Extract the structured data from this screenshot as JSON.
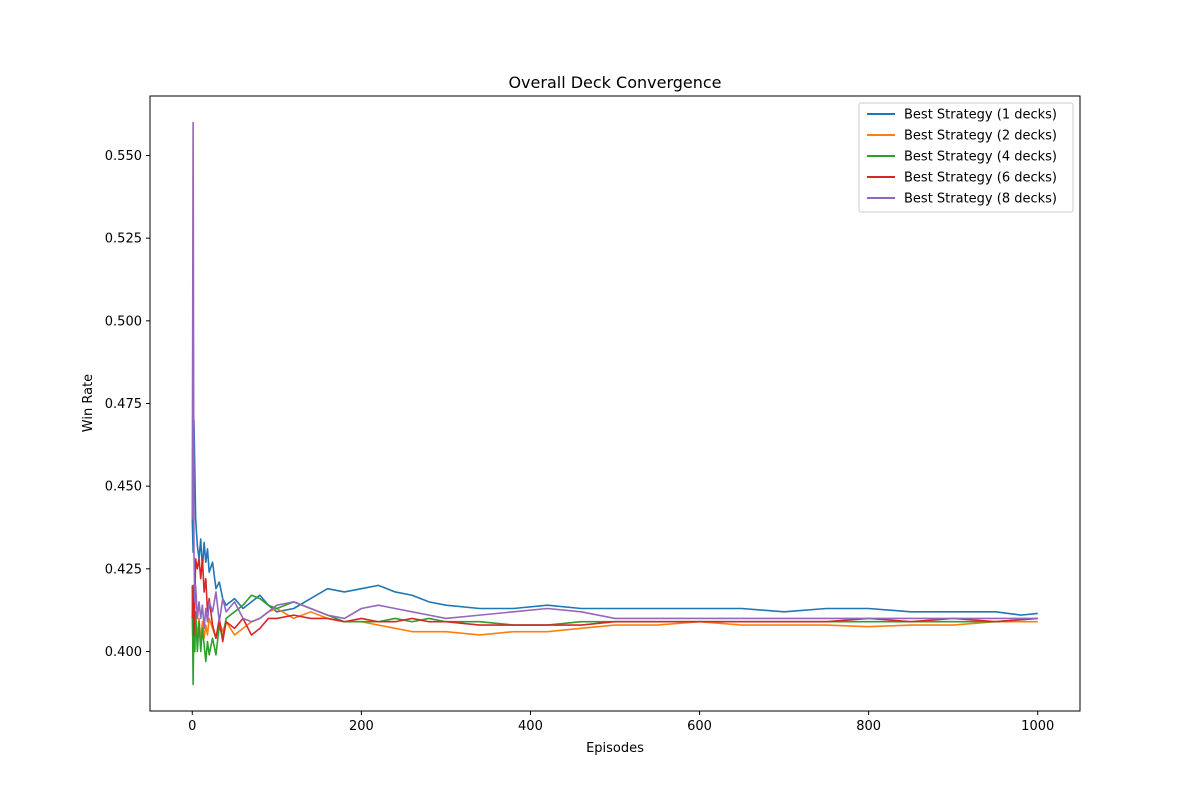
{
  "chart_data": {
    "type": "line",
    "title": "Overall Deck Convergence",
    "xlabel": "Episodes",
    "ylabel": "Win Rate",
    "xlim": [
      -50,
      1050
    ],
    "ylim": [
      0.382,
      0.568
    ],
    "xticks": [
      0,
      200,
      400,
      600,
      800,
      1000
    ],
    "xtick_labels": [
      "0",
      "200",
      "400",
      "600",
      "800",
      "1000"
    ],
    "yticks": [
      0.4,
      0.425,
      0.45,
      0.475,
      0.5,
      0.525,
      0.55
    ],
    "ytick_labels": [
      "0.400",
      "0.425",
      "0.450",
      "0.475",
      "0.500",
      "0.525",
      "0.550"
    ],
    "grid": false,
    "legend_position": "top-right",
    "series": [
      {
        "name": "Best Strategy (1 decks)",
        "color": "#1f77b4",
        "x": [
          0,
          1,
          2,
          3,
          4,
          6,
          8,
          10,
          12,
          14,
          16,
          18,
          20,
          24,
          28,
          32,
          36,
          40,
          50,
          60,
          70,
          80,
          90,
          100,
          120,
          140,
          160,
          180,
          200,
          220,
          240,
          260,
          280,
          300,
          340,
          380,
          420,
          460,
          500,
          550,
          600,
          650,
          700,
          750,
          800,
          850,
          900,
          950,
          980,
          1000
        ],
        "y": [
          0.44,
          0.43,
          0.47,
          0.455,
          0.44,
          0.432,
          0.428,
          0.434,
          0.425,
          0.433,
          0.427,
          0.431,
          0.424,
          0.427,
          0.419,
          0.421,
          0.416,
          0.414,
          0.416,
          0.413,
          0.415,
          0.417,
          0.414,
          0.412,
          0.413,
          0.416,
          0.419,
          0.418,
          0.419,
          0.42,
          0.418,
          0.417,
          0.415,
          0.414,
          0.413,
          0.413,
          0.414,
          0.413,
          0.413,
          0.413,
          0.413,
          0.413,
          0.412,
          0.413,
          0.413,
          0.412,
          0.412,
          0.412,
          0.411,
          0.4115
        ]
      },
      {
        "name": "Best Strategy (2 decks)",
        "color": "#ff7f0e",
        "x": [
          0,
          1,
          2,
          3,
          4,
          6,
          8,
          10,
          12,
          14,
          16,
          18,
          20,
          24,
          28,
          32,
          36,
          40,
          50,
          60,
          70,
          80,
          90,
          100,
          120,
          140,
          160,
          180,
          200,
          220,
          240,
          260,
          280,
          300,
          340,
          380,
          420,
          460,
          500,
          550,
          600,
          650,
          700,
          750,
          800,
          850,
          900,
          950,
          1000
        ],
        "y": [
          0.41,
          0.4,
          0.42,
          0.405,
          0.41,
          0.404,
          0.41,
          0.403,
          0.409,
          0.404,
          0.408,
          0.405,
          0.41,
          0.407,
          0.404,
          0.409,
          0.406,
          0.409,
          0.405,
          0.407,
          0.409,
          0.41,
          0.412,
          0.413,
          0.41,
          0.412,
          0.41,
          0.409,
          0.409,
          0.408,
          0.407,
          0.406,
          0.406,
          0.406,
          0.405,
          0.406,
          0.406,
          0.407,
          0.408,
          0.408,
          0.409,
          0.408,
          0.408,
          0.408,
          0.4075,
          0.408,
          0.408,
          0.409,
          0.409
        ]
      },
      {
        "name": "Best Strategy (4 decks)",
        "color": "#2ca02c",
        "x": [
          0,
          1,
          2,
          3,
          4,
          6,
          8,
          10,
          12,
          14,
          16,
          18,
          20,
          24,
          28,
          32,
          36,
          40,
          50,
          60,
          70,
          80,
          90,
          100,
          120,
          140,
          160,
          180,
          200,
          220,
          240,
          260,
          280,
          300,
          340,
          380,
          420,
          460,
          500,
          550,
          600,
          650,
          700,
          750,
          800,
          850,
          900,
          950,
          1000
        ],
        "y": [
          0.42,
          0.39,
          0.41,
          0.4,
          0.412,
          0.4,
          0.409,
          0.4,
          0.407,
          0.402,
          0.397,
          0.403,
          0.399,
          0.404,
          0.399,
          0.408,
          0.404,
          0.41,
          0.412,
          0.414,
          0.417,
          0.416,
          0.414,
          0.413,
          0.415,
          0.413,
          0.411,
          0.409,
          0.409,
          0.409,
          0.41,
          0.409,
          0.41,
          0.409,
          0.409,
          0.408,
          0.408,
          0.409,
          0.409,
          0.409,
          0.409,
          0.409,
          0.409,
          0.409,
          0.409,
          0.409,
          0.409,
          0.409,
          0.41
        ]
      },
      {
        "name": "Best Strategy (6 decks)",
        "color": "#d62728",
        "x": [
          0,
          1,
          2,
          3,
          4,
          6,
          8,
          10,
          12,
          14,
          16,
          18,
          20,
          24,
          28,
          32,
          36,
          40,
          50,
          60,
          70,
          80,
          90,
          100,
          120,
          140,
          160,
          180,
          200,
          220,
          240,
          260,
          280,
          300,
          340,
          380,
          420,
          460,
          500,
          550,
          600,
          650,
          700,
          750,
          800,
          850,
          900,
          950,
          1000
        ],
        "y": [
          0.41,
          0.42,
          0.405,
          0.415,
          0.428,
          0.425,
          0.428,
          0.422,
          0.428,
          0.418,
          0.422,
          0.412,
          0.416,
          0.408,
          0.404,
          0.41,
          0.403,
          0.409,
          0.407,
          0.41,
          0.405,
          0.407,
          0.41,
          0.41,
          0.411,
          0.41,
          0.41,
          0.409,
          0.41,
          0.409,
          0.409,
          0.41,
          0.409,
          0.409,
          0.408,
          0.408,
          0.408,
          0.408,
          0.409,
          0.409,
          0.409,
          0.409,
          0.409,
          0.409,
          0.41,
          0.409,
          0.41,
          0.409,
          0.41
        ]
      },
      {
        "name": "Best Strategy (8 decks)",
        "color": "#9467bd",
        "x": [
          0,
          1,
          2,
          3,
          4,
          6,
          8,
          10,
          12,
          14,
          16,
          18,
          20,
          24,
          28,
          32,
          36,
          40,
          50,
          60,
          70,
          80,
          90,
          100,
          120,
          140,
          160,
          180,
          200,
          220,
          240,
          260,
          280,
          300,
          340,
          380,
          420,
          460,
          500,
          550,
          600,
          650,
          700,
          750,
          800,
          850,
          900,
          950,
          1000
        ],
        "y": [
          0.44,
          0.56,
          0.43,
          0.415,
          0.42,
          0.41,
          0.415,
          0.41,
          0.414,
          0.407,
          0.413,
          0.409,
          0.415,
          0.412,
          0.418,
          0.409,
          0.416,
          0.412,
          0.415,
          0.41,
          0.409,
          0.41,
          0.412,
          0.414,
          0.415,
          0.413,
          0.411,
          0.41,
          0.413,
          0.414,
          0.413,
          0.412,
          0.411,
          0.41,
          0.411,
          0.412,
          0.413,
          0.412,
          0.41,
          0.41,
          0.41,
          0.41,
          0.41,
          0.41,
          0.41,
          0.41,
          0.41,
          0.41,
          0.41
        ]
      }
    ]
  }
}
